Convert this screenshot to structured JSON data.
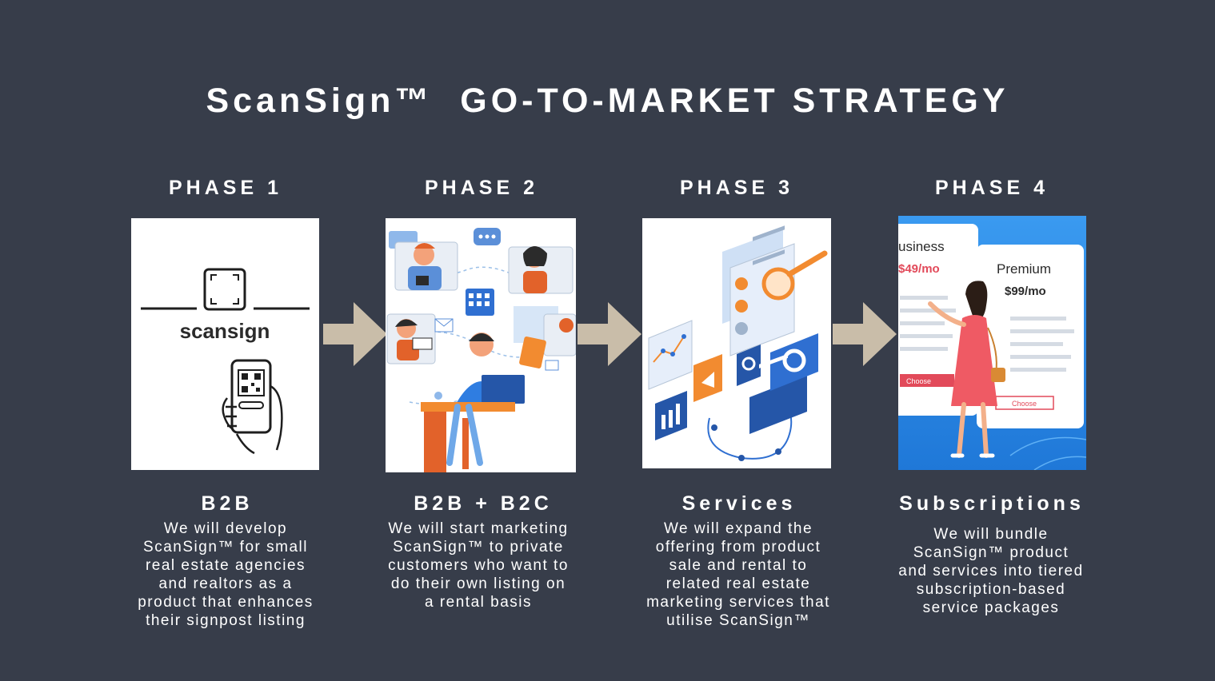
{
  "title": "ScanSign™  GO-TO-MARKET STRATEGY",
  "colors": {
    "background": "#373d4a",
    "arrow": "#c9bda9",
    "text": "#ffffff",
    "accent_blue": "#2f7de1",
    "accent_orange": "#f28b30"
  },
  "phases": [
    {
      "label": "PHASE 1",
      "heading": "B2B",
      "lines": [
        "We will develop",
        "ScanSign™ for small",
        "real estate agencies",
        "and realtors as a",
        "product that enhances",
        "their signpost listing"
      ],
      "image": {
        "icon": "qr-phone-logo",
        "logo_text": "scansign"
      }
    },
    {
      "label": "PHASE 2",
      "heading": "B2B + B2C",
      "lines": [
        "We will start marketing",
        "ScanSign™ to private",
        "customers who want to",
        "do their own listing on",
        "a rental basis"
      ],
      "image": {
        "icon": "remote-collaboration-illustration"
      }
    },
    {
      "label": "PHASE 3",
      "heading": "Services",
      "lines": [
        "We will expand the",
        "offering from product",
        "sale and rental to",
        "related real estate",
        "marketing services that",
        "utilise ScanSign™"
      ],
      "image": {
        "icon": "marketing-analytics-illustration"
      }
    },
    {
      "label": "PHASE 4",
      "heading": "Subscriptions",
      "lines": [
        "We will bundle",
        "ScanSign™ product",
        "and services into tiered",
        "subscription-based",
        "service packages"
      ],
      "image": {
        "icon": "pricing-plans-illustration",
        "card_left_title": "usiness",
        "card_left_price": "$49/mo",
        "card_right_title": "Premium",
        "card_right_price": "$99/mo",
        "choose_label": "Choose"
      }
    }
  ]
}
